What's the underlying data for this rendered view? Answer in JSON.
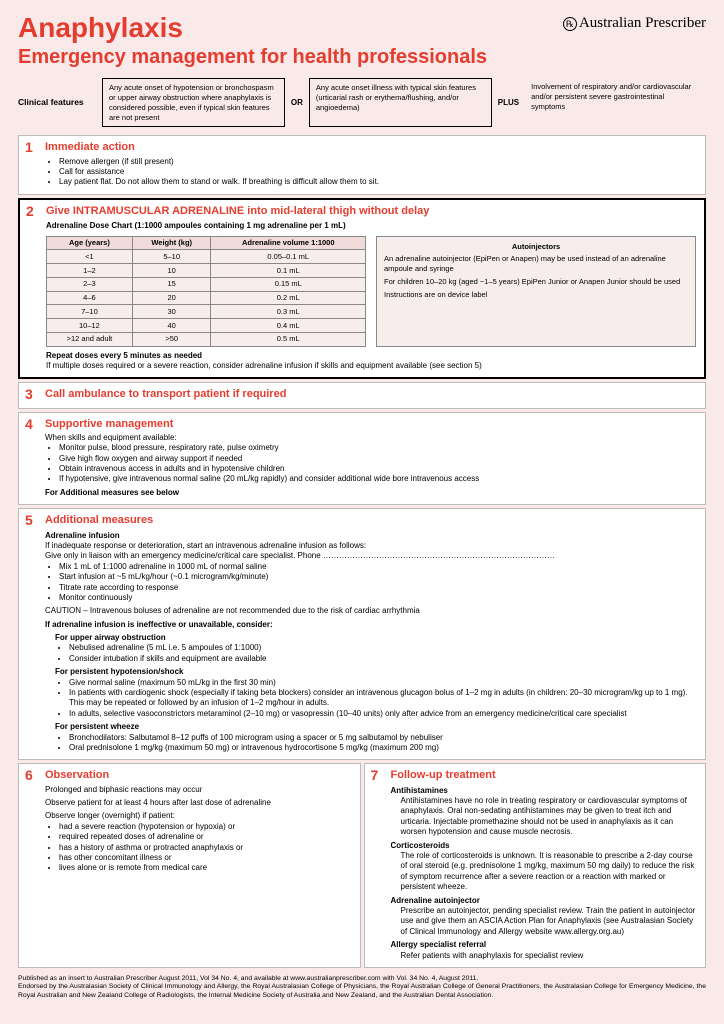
{
  "header": {
    "title": "Anaphylaxis",
    "subtitle": "Emergency management for health professionals",
    "logo_text": "Australian Prescriber",
    "logo_icon": "℞"
  },
  "clinical": {
    "label": "Clinical features",
    "box1": "Any acute onset of hypotension or bronchospasm or upper airway obstruction where anaphylaxis is considered possible, even if typical skin features are not present",
    "sep1": "OR",
    "box2": "Any acute onset illness with typical skin features (urticarial rash or erythema/flushing, and/or angioedema)",
    "sep2": "PLUS",
    "box3": "Involvement of respiratory and/or cardiovascular and/or persistent severe gastrointestinal symptoms"
  },
  "s1": {
    "num": "1",
    "title": "Immediate action",
    "items": [
      "Remove allergen (if still present)",
      "Call for assistance",
      "Lay patient flat. Do not allow them to stand or walk. If breathing is difficult allow them to sit."
    ]
  },
  "s2": {
    "num": "2",
    "title": "Give INTRAMUSCULAR ADRENALINE into mid-lateral thigh without delay",
    "chart_caption": "Adrenaline Dose Chart (1:1000 ampoules containing 1 mg adrenaline per 1 mL)",
    "headers": [
      "Age (years)",
      "Weight (kg)",
      "Adrenaline volume 1:1000"
    ],
    "rows": [
      [
        "<1",
        "5–10",
        "0.05–0.1 mL"
      ],
      [
        "1–2",
        "10",
        "0.1 mL"
      ],
      [
        "2–3",
        "15",
        "0.15 mL"
      ],
      [
        "4–6",
        "20",
        "0.2 mL"
      ],
      [
        "7–10",
        "30",
        "0.3 mL"
      ],
      [
        "10–12",
        "40",
        "0.4 mL"
      ],
      [
        ">12 and adult",
        ">50",
        "0.5 mL"
      ]
    ],
    "auto_title": "Autoinjectors",
    "auto_p1": "An adrenaline autoinjector (EpiPen or Anapen) may be used instead of an adrenaline ampoule and syringe",
    "auto_p2": "For children 10–20 kg (aged ~1–5 years) EpiPen Junior or Anapen Junior should be used",
    "auto_p3": "Instructions are on device label",
    "repeat": "Repeat doses every 5 minutes as needed",
    "repeat_note": "If multiple doses required or a severe reaction, consider adrenaline infusion if skills and equipment available (see section 5)"
  },
  "s3": {
    "num": "3",
    "title": "Call ambulance to transport patient if required"
  },
  "s4": {
    "num": "4",
    "title": "Supportive management",
    "lead": "When skills and equipment available:",
    "items": [
      "Monitor pulse, blood pressure, respiratory rate, pulse oximetry",
      "Give high flow oxygen and airway support if needed",
      "Obtain intravenous access in adults and in hypotensive children",
      "If hypotensive, give intravenous normal saline (20 mL/kg rapidly) and consider additional wide bore intravenous access"
    ],
    "foot": "For Additional measures see below"
  },
  "s5": {
    "num": "5",
    "title": "Additional measures",
    "h_inf": "Adrenaline infusion",
    "inf_lead": "If inadequate response or deterioration, start an intravenous adrenaline infusion as follows:",
    "inf_liaison": "Give only in liaison with an emergency medicine/critical care specialist. Phone ……………………………………………………………………………",
    "inf_items": [
      "Mix 1 mL of 1:1000 adrenaline in 1000 mL of normal saline",
      "Start infusion at ~5 mL/kg/hour (~0.1 microgram/kg/minute)",
      "Titrate rate according to response",
      "Monitor continuously"
    ],
    "caution": "CAUTION – Intravenous boluses of adrenaline are not recommended due to the risk of cardiac arrhythmia",
    "ineffective": "If adrenaline infusion is ineffective or unavailable, consider:",
    "h_upper": "For upper airway obstruction",
    "upper_items": [
      "Nebulised adrenaline (5 mL i.e. 5 ampoules of 1:1000)",
      "Consider intubation if skills and equipment are available"
    ],
    "h_shock": "For persistent hypotension/shock",
    "shock_items": [
      "Give normal saline (maximum 50 mL/kg in the first 30 min)",
      "In patients with cardiogenic shock (especially if taking beta blockers) consider an intravenous glucagon bolus of 1–2 mg in adults (in children: 20–30 microgram/kg up to 1 mg). This may be repeated or followed by an infusion of 1–2 mg/hour in adults.",
      "In adults, selective vasoconstrictors metaraminol (2–10 mg) or vasopressin (10–40 units) only after advice from an emergency medicine/critical care specialist"
    ],
    "h_wheeze": "For persistent wheeze",
    "wheeze_items": [
      "Bronchodilators: Salbutamol 8–12 puffs of 100 microgram using a spacer or 5 mg salbutamol by nebuliser",
      "Oral prednisolone 1 mg/kg (maximum 50 mg) or intravenous hydrocortisone 5 mg/kg (maximum 200 mg)"
    ]
  },
  "s6": {
    "num": "6",
    "title": "Observation",
    "p1": "Prolonged and biphasic reactions may occur",
    "p2": "Observe patient for at least 4 hours after last dose of adrenaline",
    "p3": "Observe longer (overnight) if patient:",
    "items": [
      "had a severe reaction (hypotension or hypoxia) or",
      "required repeated doses of adrenaline or",
      "has a history of asthma or protracted anaphylaxis or",
      "has other concomitant illness or",
      "lives alone or is remote from medical care"
    ]
  },
  "s7": {
    "num": "7",
    "title": "Follow-up treatment",
    "h_anti": "Antihistamines",
    "anti_text": "Antihistamines have no role in treating respiratory or cardiovascular symptoms of anaphylaxis. Oral non-sedating antihistamines may be given to treat itch and urticaria. Injectable promethazine should not be used in anaphylaxis as it can worsen hypotension and cause muscle necrosis.",
    "h_cort": "Corticosteroids",
    "cort_text": "The role of corticosteroids is unknown. It is reasonable to prescribe a 2-day course of oral steroid (e.g. prednisolone 1 mg/kg, maximum 50 mg daily) to reduce the risk of symptom recurrence after a severe reaction or a reaction with marked or persistent wheeze.",
    "h_auto": "Adrenaline autoinjector",
    "auto_text": "Prescribe an autoinjector, pending specialist review. Train the patient in autoinjector use and give them an ASCIA Action Plan for Anaphylaxis (see Australasian Society of Clinical Immunology and Allergy website www.allergy.org.au)",
    "h_ref": "Allergy specialist referral",
    "ref_text": "Refer patients with anaphylaxis for specialist review"
  },
  "footer": {
    "line1": "Published as an insert to Australian Prescriber August 2011, Vol 34 No. 4, and available at www.australianprescriber.com with Vol. 34 No. 4, August 2011.",
    "line2": "Endorsed by the Australasian Society of Clinical Immunology and Allergy, the Royal Australasian College of Physicians, the Royal Australian College of General Practitioners, the Australasian College for Emergency Medicine, the Royal Australian and New Zealand College of Radiologists, the Internal Medicine Society of Australia and New Zealand, and the Australian Dental Association."
  }
}
